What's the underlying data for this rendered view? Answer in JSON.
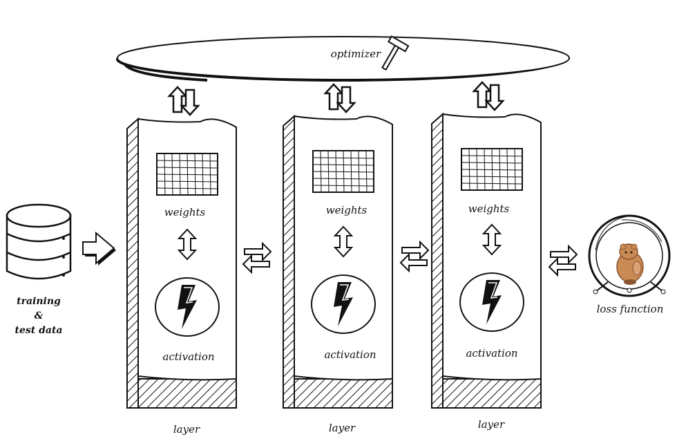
{
  "labels": {
    "optimizer": "optimizer",
    "weights": "weights",
    "activation": "activation",
    "layer": "layer",
    "data_line1": "training",
    "data_line2": "&",
    "data_line3": "test data",
    "loss_function": "loss function"
  },
  "colors": {
    "ink": "#111111",
    "background": "#ffffff",
    "hamster": "#c98a54",
    "hamster_dark": "#8a5530"
  },
  "icons": {
    "database": "database-icon",
    "optimizer_tool": "hammer-icon",
    "activation": "lightning-bolt-icon",
    "loss": "hamster-wheel-icon"
  }
}
